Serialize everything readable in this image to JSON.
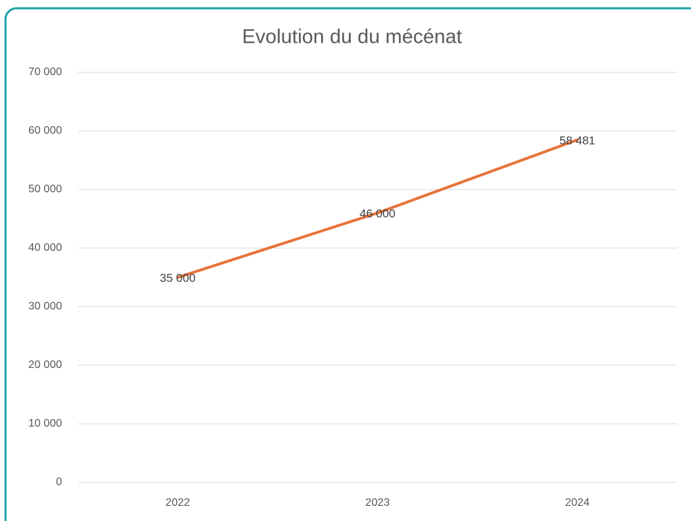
{
  "chart_data": {
    "type": "line",
    "title": "Evolution du du mécénat",
    "categories": [
      "2022",
      "2023",
      "2024"
    ],
    "values": [
      35000,
      46000,
      58481
    ],
    "value_labels": [
      "35 000",
      "46 000",
      "58 481"
    ],
    "color": "#e8733a",
    "ylim": [
      0,
      70000
    ],
    "yticks": [
      0,
      {
        "value": 10000,
        "label": "10 000"
      },
      {
        "value": 20000,
        "label": "20 000"
      },
      {
        "value": 30000,
        "label": "30 000"
      },
      {
        "value": 40000,
        "label": "40 000"
      },
      {
        "value": 50000,
        "label": "50 000"
      },
      {
        "value": 60000,
        "label": "60 000"
      },
      {
        "value": 70000,
        "label": "70 000"
      }
    ],
    "grid": true
  }
}
